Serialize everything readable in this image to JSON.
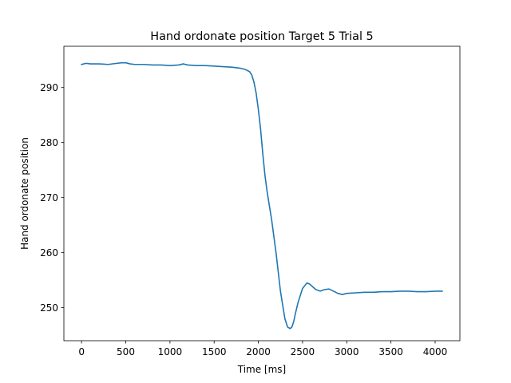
{
  "chart_data": {
    "type": "line",
    "title": "Hand ordonate position Target 5 Trial 5",
    "xlabel": "Time [ms]",
    "ylabel": "Hand ordonate position",
    "xlim": [
      -200,
      4280
    ],
    "ylim": [
      244,
      297.5
    ],
    "xticks": [
      0,
      500,
      1000,
      1500,
      2000,
      2500,
      3000,
      3500,
      4000
    ],
    "yticks": [
      250,
      260,
      270,
      280,
      290
    ],
    "grid": false,
    "color": "#1f77b4",
    "series": [
      {
        "x": [
          0,
          50,
          100,
          200,
          300,
          400,
          450,
          500,
          550,
          600,
          700,
          800,
          900,
          1000,
          1100,
          1150,
          1200,
          1300,
          1400,
          1500,
          1600,
          1700,
          1800,
          1850,
          1900,
          1925,
          1950,
          1975,
          2000,
          2025,
          2050,
          2075,
          2100,
          2150,
          2200,
          2250,
          2300,
          2330,
          2360,
          2380,
          2400,
          2420,
          2450,
          2500,
          2550,
          2580,
          2600,
          2650,
          2700,
          2750,
          2800,
          2850,
          2900,
          2950,
          3000,
          3100,
          3200,
          3300,
          3400,
          3500,
          3600,
          3700,
          3800,
          3900,
          4000,
          4080
        ],
        "y": [
          294.2,
          294.4,
          294.3,
          294.3,
          294.2,
          294.4,
          294.5,
          294.5,
          294.3,
          294.2,
          294.2,
          294.1,
          294.1,
          294.0,
          294.1,
          294.3,
          294.1,
          294.0,
          294.0,
          293.9,
          293.8,
          293.7,
          293.5,
          293.3,
          292.9,
          292.3,
          291.0,
          289.0,
          286.0,
          282.5,
          278.0,
          274.0,
          271.0,
          266.0,
          260.0,
          253.0,
          248.0,
          246.5,
          246.2,
          246.5,
          247.5,
          249.0,
          251.0,
          253.5,
          254.5,
          254.3,
          254.0,
          253.3,
          253.0,
          253.3,
          253.4,
          253.0,
          252.6,
          252.4,
          252.6,
          252.7,
          252.8,
          252.8,
          252.9,
          252.9,
          253.0,
          253.0,
          252.9,
          252.9,
          253.0,
          253.0
        ]
      }
    ]
  }
}
